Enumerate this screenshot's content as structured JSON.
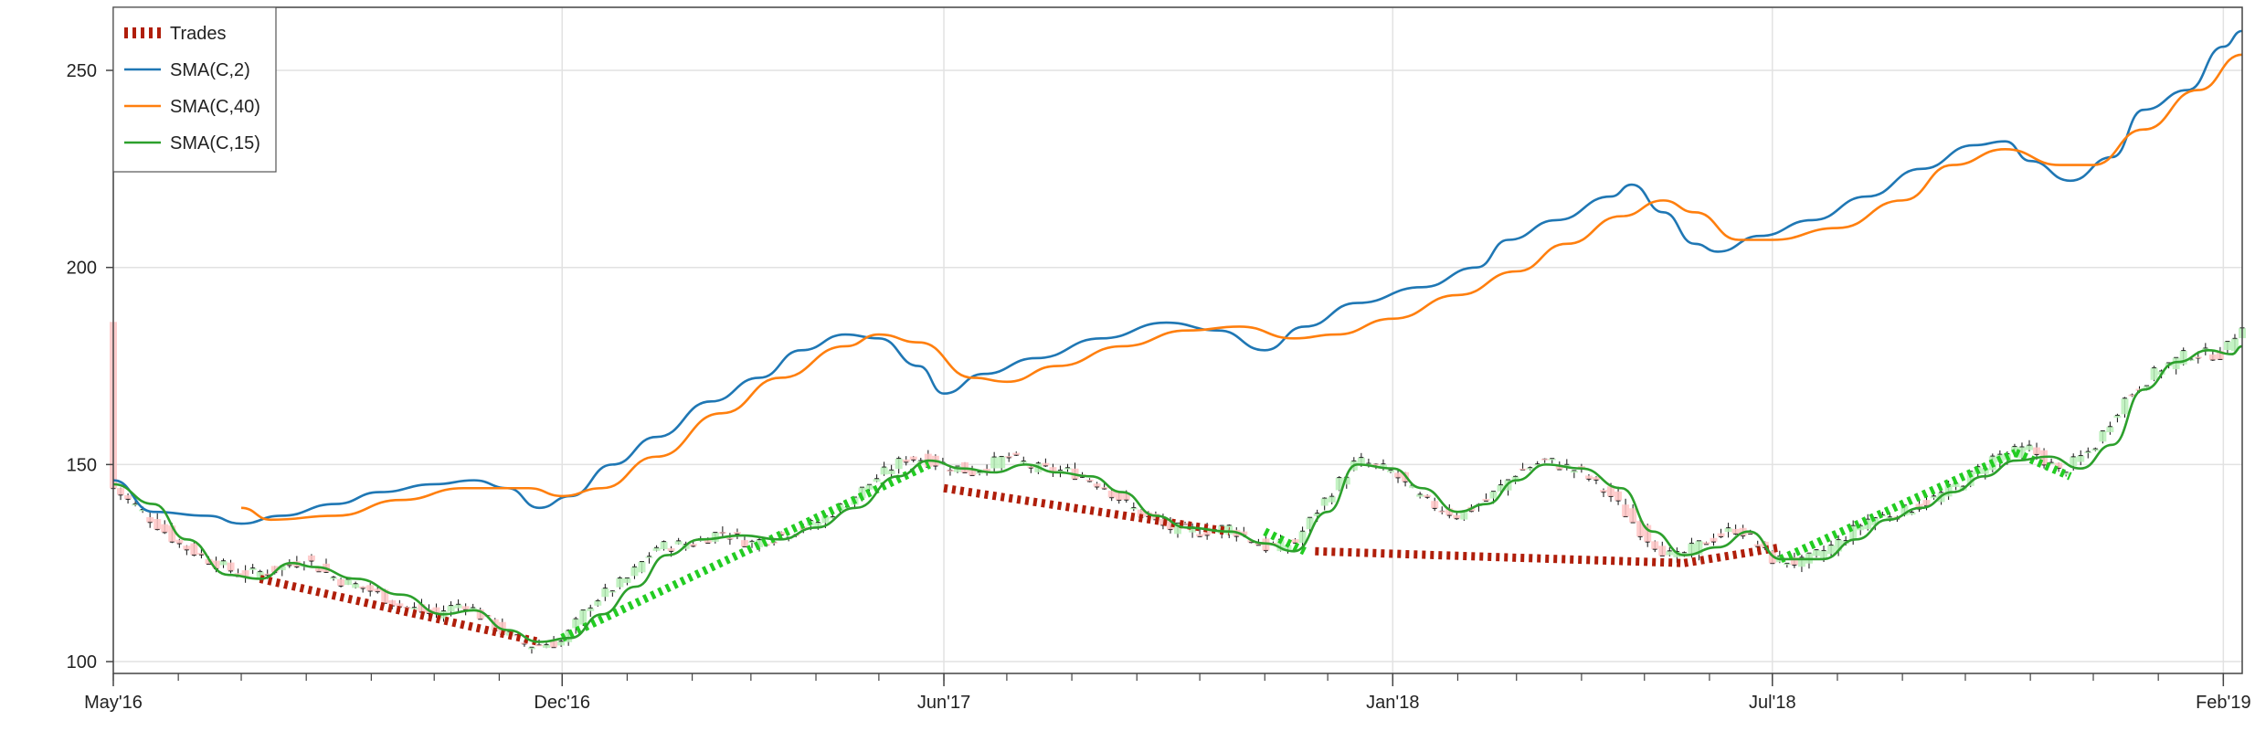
{
  "chart_data": {
    "type": "line",
    "x_axis": {
      "type": "date",
      "tick_labels": [
        "May'16",
        "Dec'16",
        "Jun'17",
        "Jan'18",
        "Jul'18",
        "Feb'19"
      ],
      "tick_dates": [
        "2016-05-01",
        "2016-12-01",
        "2017-06-01",
        "2018-01-01",
        "2018-07-01",
        "2019-02-01"
      ],
      "range": [
        "2016-05-01",
        "2019-02-10"
      ]
    },
    "y_axis": {
      "tick_labels": [
        "100",
        "150",
        "200",
        "250"
      ],
      "ticks": [
        100,
        150,
        200,
        250
      ],
      "range": [
        97,
        266
      ]
    },
    "grid": true,
    "legend_position": "top-left",
    "legend": [
      {
        "name": "Trades",
        "color": "#b01e0a",
        "style": "dotted-thick"
      },
      {
        "name": "SMA(C,2)",
        "color": "#1f77b4",
        "style": "line"
      },
      {
        "name": "SMA(C,40)",
        "color": "#ff7f0e",
        "style": "line"
      },
      {
        "name": "SMA(C,15)",
        "color": "#2ca02c",
        "style": "line"
      }
    ],
    "series": [
      {
        "name": "SMA(C,2)",
        "color": "#1f77b4",
        "points": [
          [
            "2016-05-01",
            146
          ],
          [
            "2016-05-20",
            138
          ],
          [
            "2016-06-15",
            137
          ],
          [
            "2016-07-01",
            135
          ],
          [
            "2016-07-20",
            137
          ],
          [
            "2016-08-15",
            140
          ],
          [
            "2016-09-05",
            143
          ],
          [
            "2016-10-01",
            145
          ],
          [
            "2016-10-20",
            146
          ],
          [
            "2016-11-05",
            144
          ],
          [
            "2016-11-20",
            139
          ],
          [
            "2016-12-05",
            142
          ],
          [
            "2016-12-25",
            150
          ],
          [
            "2017-01-15",
            157
          ],
          [
            "2017-02-10",
            166
          ],
          [
            "2017-03-05",
            172
          ],
          [
            "2017-03-25",
            179
          ],
          [
            "2017-04-15",
            183
          ],
          [
            "2017-05-01",
            182
          ],
          [
            "2017-05-20",
            175
          ],
          [
            "2017-06-01",
            168
          ],
          [
            "2017-06-20",
            173
          ],
          [
            "2017-07-15",
            177
          ],
          [
            "2017-08-15",
            182
          ],
          [
            "2017-09-15",
            186
          ],
          [
            "2017-10-10",
            184
          ],
          [
            "2017-11-01",
            179
          ],
          [
            "2017-11-20",
            185
          ],
          [
            "2017-12-15",
            191
          ],
          [
            "2018-01-15",
            195
          ],
          [
            "2018-02-10",
            200
          ],
          [
            "2018-02-25",
            207
          ],
          [
            "2018-03-20",
            212
          ],
          [
            "2018-04-15",
            218
          ],
          [
            "2018-04-25",
            221
          ],
          [
            "2018-05-10",
            214
          ],
          [
            "2018-05-25",
            206
          ],
          [
            "2018-06-05",
            204
          ],
          [
            "2018-06-25",
            208
          ],
          [
            "2018-07-20",
            212
          ],
          [
            "2018-08-15",
            218
          ],
          [
            "2018-09-10",
            225
          ],
          [
            "2018-10-05",
            231
          ],
          [
            "2018-10-20",
            232
          ],
          [
            "2018-11-01",
            227
          ],
          [
            "2018-11-20",
            222
          ],
          [
            "2018-12-10",
            228
          ],
          [
            "2018-12-25",
            240
          ],
          [
            "2019-01-15",
            245
          ],
          [
            "2019-02-01",
            256
          ],
          [
            "2019-02-10",
            260
          ]
        ]
      },
      {
        "name": "SMA(C,40)",
        "color": "#ff7f0e",
        "points": [
          [
            "2016-07-01",
            139
          ],
          [
            "2016-07-15",
            136
          ],
          [
            "2016-08-15",
            137
          ],
          [
            "2016-09-15",
            141
          ],
          [
            "2016-10-15",
            144
          ],
          [
            "2016-11-15",
            144
          ],
          [
            "2016-12-01",
            142
          ],
          [
            "2016-12-20",
            144
          ],
          [
            "2017-01-15",
            152
          ],
          [
            "2017-02-15",
            163
          ],
          [
            "2017-03-15",
            172
          ],
          [
            "2017-04-15",
            180
          ],
          [
            "2017-05-01",
            183
          ],
          [
            "2017-05-20",
            181
          ],
          [
            "2017-06-15",
            172
          ],
          [
            "2017-07-01",
            171
          ],
          [
            "2017-07-25",
            175
          ],
          [
            "2017-08-25",
            180
          ],
          [
            "2017-09-25",
            184
          ],
          [
            "2017-10-20",
            185
          ],
          [
            "2017-11-15",
            182
          ],
          [
            "2017-12-05",
            183
          ],
          [
            "2018-01-01",
            187
          ],
          [
            "2018-02-01",
            193
          ],
          [
            "2018-03-01",
            199
          ],
          [
            "2018-03-25",
            206
          ],
          [
            "2018-04-20",
            213
          ],
          [
            "2018-05-10",
            217
          ],
          [
            "2018-05-25",
            214
          ],
          [
            "2018-06-15",
            207
          ],
          [
            "2018-07-01",
            207
          ],
          [
            "2018-08-01",
            210
          ],
          [
            "2018-09-01",
            217
          ],
          [
            "2018-09-25",
            226
          ],
          [
            "2018-10-20",
            230
          ],
          [
            "2018-11-15",
            226
          ],
          [
            "2018-12-01",
            226
          ],
          [
            "2018-12-25",
            235
          ],
          [
            "2019-01-20",
            245
          ],
          [
            "2019-02-10",
            254
          ]
        ]
      },
      {
        "name": "SMA(C,15)",
        "color": "#2ca02c",
        "points": [
          [
            "2016-05-01",
            145
          ],
          [
            "2016-05-20",
            140
          ],
          [
            "2016-06-05",
            131
          ],
          [
            "2016-06-25",
            122
          ],
          [
            "2016-07-10",
            121
          ],
          [
            "2016-07-25",
            125
          ],
          [
            "2016-08-05",
            124
          ],
          [
            "2016-08-25",
            121
          ],
          [
            "2016-09-15",
            117
          ],
          [
            "2016-10-05",
            112
          ],
          [
            "2016-10-20",
            113
          ],
          [
            "2016-11-05",
            108
          ],
          [
            "2016-11-20",
            105
          ],
          [
            "2016-12-05",
            106
          ],
          [
            "2016-12-20",
            112
          ],
          [
            "2017-01-05",
            119
          ],
          [
            "2017-01-20",
            127
          ],
          [
            "2017-02-05",
            131
          ],
          [
            "2017-02-25",
            132
          ],
          [
            "2017-03-15",
            131
          ],
          [
            "2017-04-01",
            134
          ],
          [
            "2017-04-20",
            139
          ],
          [
            "2017-05-10",
            147
          ],
          [
            "2017-05-25",
            151
          ],
          [
            "2017-06-10",
            149
          ],
          [
            "2017-06-25",
            148
          ],
          [
            "2017-07-10",
            150
          ],
          [
            "2017-07-25",
            148
          ],
          [
            "2017-08-10",
            147
          ],
          [
            "2017-08-25",
            143
          ],
          [
            "2017-09-10",
            137
          ],
          [
            "2017-09-25",
            134
          ],
          [
            "2017-10-15",
            133
          ],
          [
            "2017-11-01",
            130
          ],
          [
            "2017-11-15",
            128
          ],
          [
            "2017-12-01",
            138
          ],
          [
            "2017-12-15",
            150
          ],
          [
            "2018-01-01",
            149
          ],
          [
            "2018-01-15",
            144
          ],
          [
            "2018-02-01",
            138
          ],
          [
            "2018-02-15",
            140
          ],
          [
            "2018-03-01",
            146
          ],
          [
            "2018-03-15",
            150
          ],
          [
            "2018-04-01",
            149
          ],
          [
            "2018-04-20",
            144
          ],
          [
            "2018-05-05",
            133
          ],
          [
            "2018-05-20",
            127
          ],
          [
            "2018-06-05",
            129
          ],
          [
            "2018-06-20",
            133
          ],
          [
            "2018-07-05",
            126
          ],
          [
            "2018-07-25",
            126
          ],
          [
            "2018-08-10",
            131
          ],
          [
            "2018-08-25",
            136
          ],
          [
            "2018-09-10",
            139
          ],
          [
            "2018-09-25",
            143
          ],
          [
            "2018-10-10",
            147
          ],
          [
            "2018-10-25",
            151
          ],
          [
            "2018-11-10",
            152
          ],
          [
            "2018-11-25",
            149
          ],
          [
            "2018-12-10",
            155
          ],
          [
            "2018-12-25",
            169
          ],
          [
            "2019-01-10",
            176
          ],
          [
            "2019-01-25",
            179
          ],
          [
            "2019-02-05",
            178
          ],
          [
            "2019-02-10",
            180
          ]
        ]
      },
      {
        "name": "Trades (long)",
        "color": "#22cc22",
        "style": "dotted-thick",
        "segments": [
          [
            [
              "2016-12-01",
              106
            ],
            [
              "2017-05-25",
              150
            ]
          ],
          [
            [
              "2017-11-01",
              133
            ],
            [
              "2017-11-20",
              128
            ]
          ],
          [
            [
              "2018-07-05",
              126
            ],
            [
              "2018-10-25",
              153
            ]
          ],
          [
            [
              "2018-10-25",
              153
            ],
            [
              "2018-11-20",
              147
            ]
          ]
        ]
      },
      {
        "name": "Trades (short)",
        "color": "#b01e0a",
        "style": "dotted-thick",
        "segments": [
          [
            [
              "2016-07-10",
              121
            ],
            [
              "2016-11-20",
              105
            ]
          ],
          [
            [
              "2017-06-01",
              144
            ],
            [
              "2017-10-15",
              133
            ]
          ],
          [
            [
              "2017-11-25",
              128
            ],
            [
              "2018-05-20",
              125
            ]
          ],
          [
            [
              "2018-05-20",
              125
            ],
            [
              "2018-07-05",
              129
            ]
          ]
        ]
      },
      {
        "name": "Price",
        "color": "#000000",
        "style": "candles",
        "closes": [
          [
            "2016-05-01",
            144
          ],
          [
            "2016-05-15",
            138
          ],
          [
            "2016-06-01",
            130
          ],
          [
            "2016-06-15",
            126
          ],
          [
            "2016-07-01",
            122
          ],
          [
            "2016-07-15",
            123
          ],
          [
            "2016-08-01",
            126
          ],
          [
            "2016-08-15",
            121
          ],
          [
            "2016-09-01",
            118
          ],
          [
            "2016-09-15",
            114
          ],
          [
            "2016-10-01",
            112
          ],
          [
            "2016-10-15",
            115
          ],
          [
            "2016-11-01",
            108
          ],
          [
            "2016-11-15",
            104
          ],
          [
            "2016-12-01",
            105
          ],
          [
            "2016-12-15",
            115
          ],
          [
            "2017-01-01",
            121
          ],
          [
            "2017-01-15",
            129
          ],
          [
            "2017-02-01",
            130
          ],
          [
            "2017-02-15",
            133
          ],
          [
            "2017-03-01",
            130
          ],
          [
            "2017-03-15",
            132
          ],
          [
            "2017-04-01",
            135
          ],
          [
            "2017-04-15",
            140
          ],
          [
            "2017-05-01",
            147
          ],
          [
            "2017-05-15",
            152
          ],
          [
            "2017-06-01",
            150
          ],
          [
            "2017-06-15",
            148
          ],
          [
            "2017-07-01",
            152
          ],
          [
            "2017-07-15",
            149
          ],
          [
            "2017-08-01",
            148
          ],
          [
            "2017-08-15",
            145
          ],
          [
            "2017-09-01",
            138
          ],
          [
            "2017-09-15",
            134
          ],
          [
            "2017-10-01",
            133
          ],
          [
            "2017-10-15",
            134
          ],
          [
            "2017-11-01",
            129
          ],
          [
            "2017-11-15",
            130
          ],
          [
            "2017-12-01",
            142
          ],
          [
            "2017-12-15",
            151
          ],
          [
            "2018-01-01",
            148
          ],
          [
            "2018-01-15",
            141
          ],
          [
            "2018-02-01",
            137
          ],
          [
            "2018-02-15",
            141
          ],
          [
            "2018-03-01",
            148
          ],
          [
            "2018-03-15",
            151
          ],
          [
            "2018-04-01",
            148
          ],
          [
            "2018-04-15",
            142
          ],
          [
            "2018-05-01",
            132
          ],
          [
            "2018-05-15",
            126
          ],
          [
            "2018-06-01",
            131
          ],
          [
            "2018-06-15",
            134
          ],
          [
            "2018-07-01",
            126
          ],
          [
            "2018-07-15",
            125
          ],
          [
            "2018-08-01",
            130
          ],
          [
            "2018-08-15",
            136
          ],
          [
            "2018-09-01",
            138
          ],
          [
            "2018-09-15",
            141
          ],
          [
            "2018-10-01",
            146
          ],
          [
            "2018-10-15",
            152
          ],
          [
            "2018-11-01",
            154
          ],
          [
            "2018-11-15",
            148
          ],
          [
            "2018-12-01",
            154
          ],
          [
            "2018-12-15",
            166
          ],
          [
            "2019-01-01",
            174
          ],
          [
            "2019-01-15",
            178
          ],
          [
            "2019-02-01",
            178
          ],
          [
            "2019-02-10",
            186
          ]
        ]
      }
    ]
  }
}
